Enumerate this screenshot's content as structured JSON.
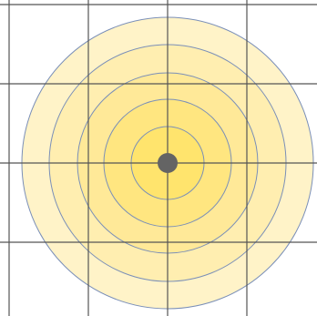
{
  "map": {
    "background": "#ffffff",
    "grid": {
      "color": "#555555",
      "visible": true
    },
    "rings": {
      "count": 5,
      "fill_colors": [
        "#fff3c8",
        "#ffeeb0",
        "#ffe998",
        "#ffe680",
        "#ffe46d"
      ],
      "stroke_color": "#7a8fb8"
    },
    "center_marker": {
      "color": "#646464",
      "icon": "location-dot-icon"
    }
  }
}
